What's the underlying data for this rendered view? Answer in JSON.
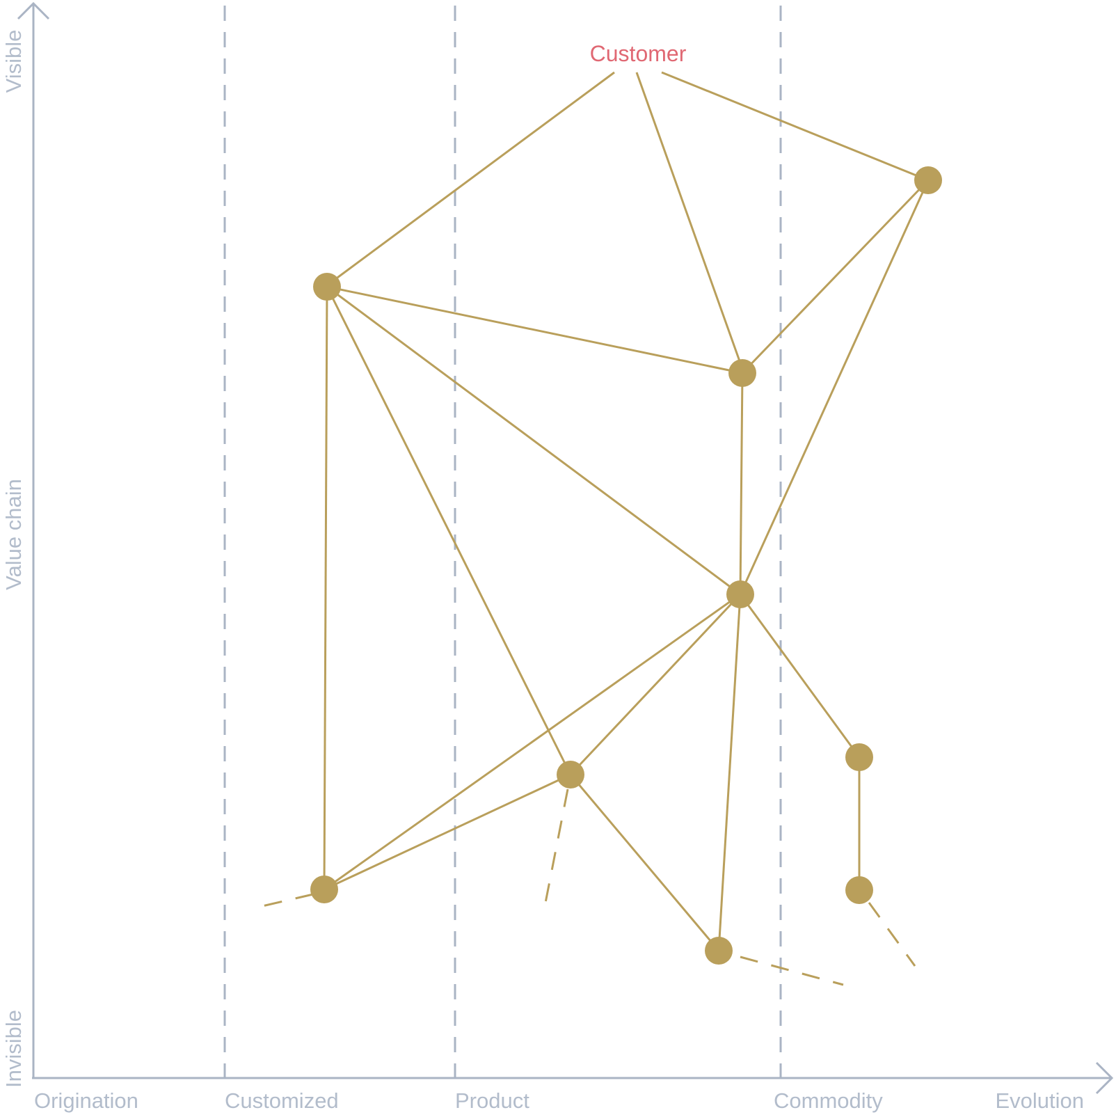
{
  "colors": {
    "axis": "#aab4c4",
    "axis_text": "#b2bccb",
    "edge": "#b99f5b",
    "node": "#b99f5b",
    "anchor": "#e06873"
  },
  "anchor_label": "Customer",
  "axes": {
    "x_label": "Evolution",
    "y_label": "Value chain",
    "y_top_label": "Visible",
    "y_bottom_label": "Invisible"
  },
  "stages": [
    "Origination",
    "Customized",
    "Product",
    "Commodity"
  ]
}
